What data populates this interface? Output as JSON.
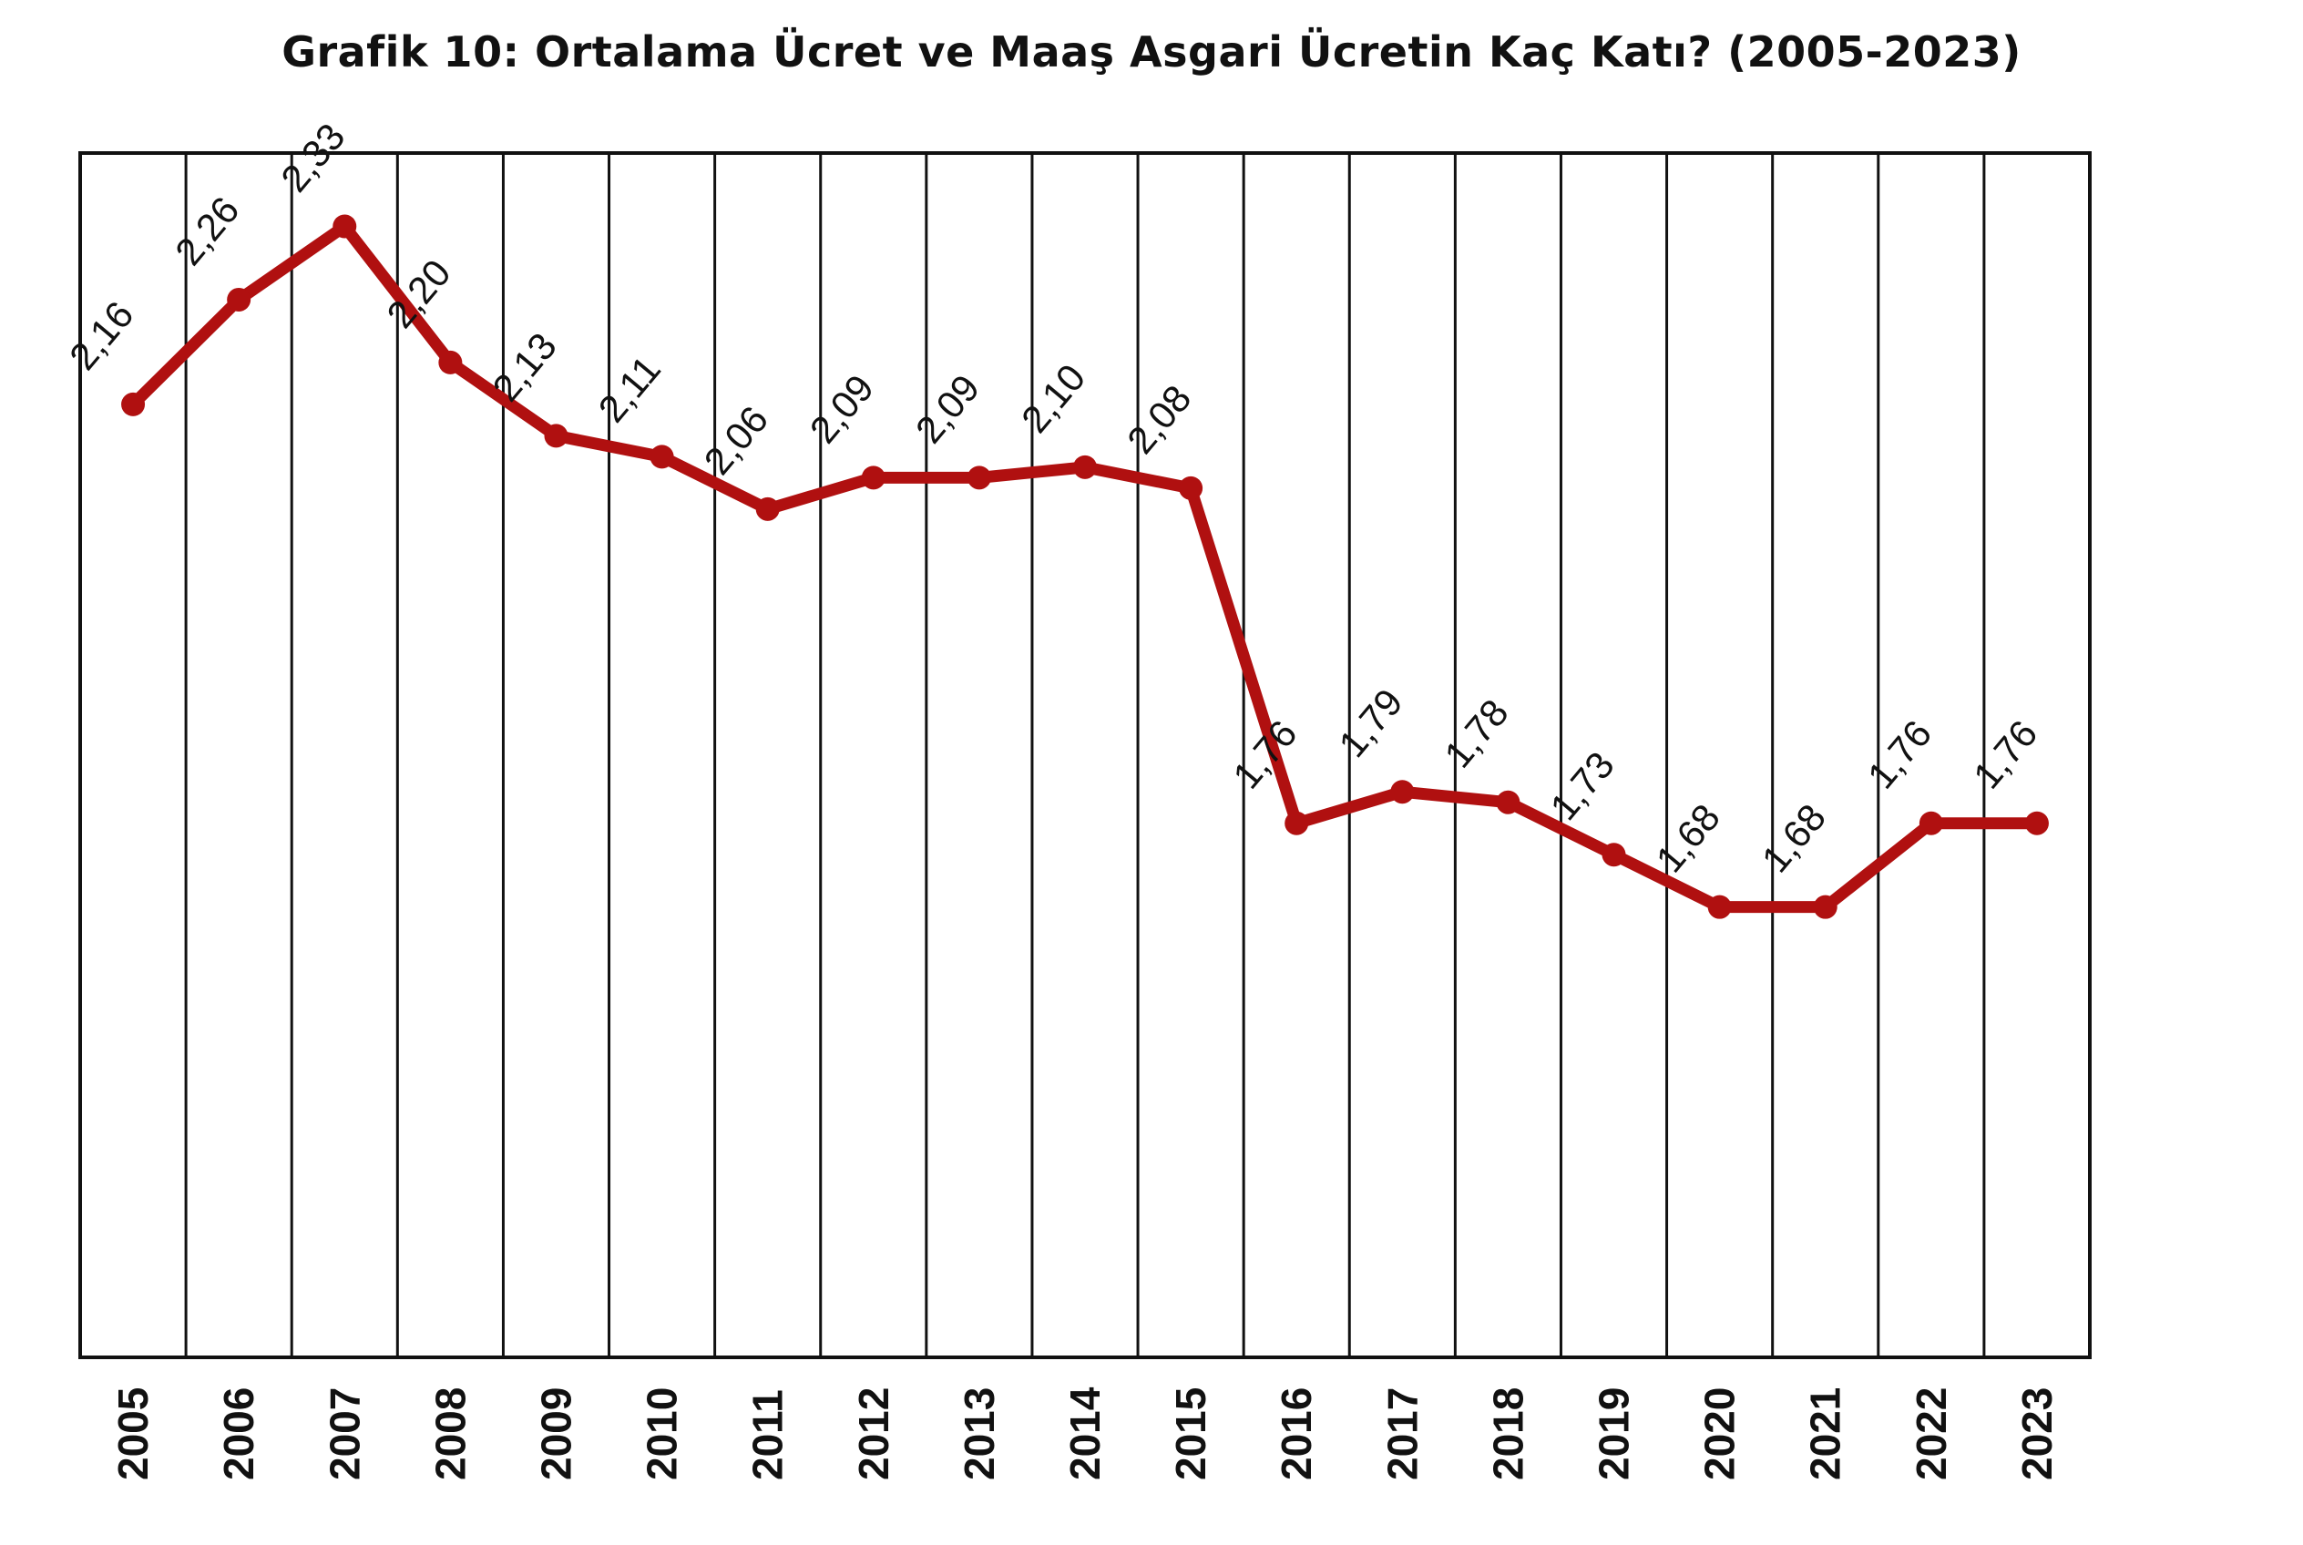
{
  "chart_data": {
    "type": "line",
    "title": "Grafik 10: Ortalama Ücret ve Maaş Asgari Ücretin Kaç Katı? (2005-2023)",
    "categories": [
      "2005",
      "2006",
      "2007",
      "2008",
      "2009",
      "2010",
      "2011",
      "2012",
      "2013",
      "2014",
      "2015",
      "2016",
      "2017",
      "2018",
      "2019",
      "2020",
      "2021",
      "2022",
      "2023"
    ],
    "values": [
      2.16,
      2.26,
      2.33,
      2.2,
      2.13,
      2.11,
      2.06,
      2.09,
      2.09,
      2.1,
      2.08,
      1.76,
      1.79,
      1.78,
      1.73,
      1.68,
      1.68,
      1.76,
      1.76
    ],
    "data_labels": [
      "2,16",
      "2,26",
      "2,33",
      "2,20",
      "2,13",
      "2,11",
      "2,06",
      "2,09",
      "2,09",
      "2,10",
      "2,08",
      "1,76",
      "1,79",
      "1,78",
      "1,73",
      "1,68",
      "1,68",
      "1,76",
      "1,76"
    ],
    "xlabel": "",
    "ylabel": "",
    "ylim": [
      1.25,
      2.4
    ],
    "grid": "vertical",
    "legend": "none",
    "line_color": "#b01010"
  }
}
